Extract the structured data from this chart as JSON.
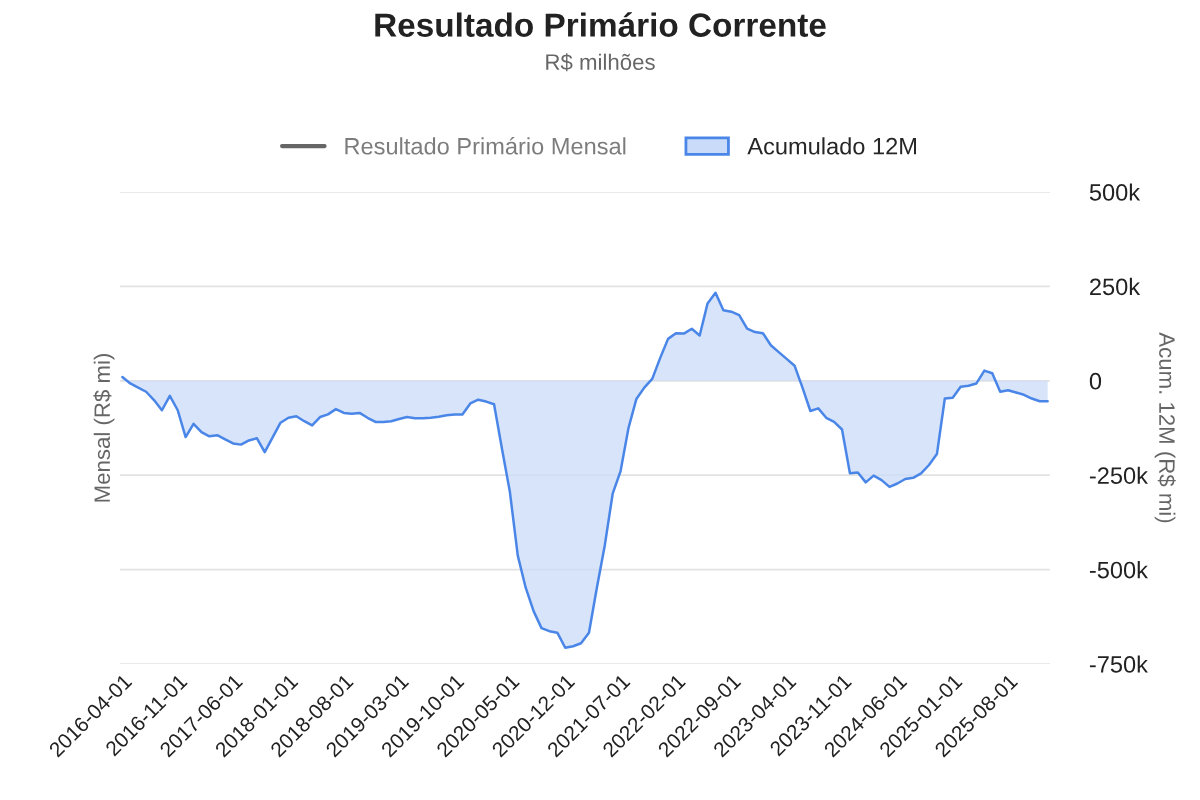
{
  "chart_data": {
    "type": "area",
    "title": "Resultado Primário Corrente",
    "subtitle": "R$ milhões",
    "ylabel": "Mensal (R$ mi)",
    "y2label": "Acum. 12M (R$ mi)",
    "categories": [
      "2016-04-01",
      null,
      null,
      null,
      null,
      null,
      null,
      "2016-11-01",
      null,
      null,
      null,
      null,
      null,
      null,
      "2017-06-01",
      null,
      null,
      null,
      null,
      null,
      null,
      "2018-01-01",
      null,
      null,
      null,
      null,
      null,
      null,
      "2018-08-01",
      null,
      null,
      null,
      null,
      null,
      null,
      "2019-03-01",
      null,
      null,
      null,
      null,
      null,
      null,
      "2019-10-01",
      null,
      null,
      null,
      null,
      null,
      null,
      "2020-05-01",
      null,
      null,
      null,
      null,
      null,
      null,
      "2020-12-01",
      null,
      null,
      null,
      null,
      null,
      null,
      "2021-07-01",
      null,
      null,
      null,
      null,
      null,
      null,
      "2022-02-01",
      null,
      null,
      null,
      null,
      null,
      null,
      "2022-09-01",
      null,
      null,
      null,
      null,
      null,
      null,
      "2023-04-01",
      null,
      null,
      null,
      null,
      null,
      null,
      "2023-11-01",
      null,
      null,
      null,
      null,
      null,
      null,
      "2024-06-01",
      null,
      null,
      null,
      null,
      null,
      null,
      "2025-01-01",
      null,
      null,
      null,
      null,
      null,
      null,
      "2025-08-01",
      null,
      null,
      null,
      null,
      null
    ],
    "series": [
      {
        "name": "Resultado Primário Mensal",
        "type": "line",
        "color": "#666666",
        "values": [
          null,
          null,
          null,
          null,
          null,
          null,
          null,
          null,
          null,
          null,
          null,
          null,
          null,
          null,
          null,
          null,
          null,
          null,
          null,
          null,
          null,
          null,
          null,
          null,
          null,
          null,
          null,
          null,
          null,
          null,
          null,
          null,
          null,
          null,
          null,
          null,
          null,
          null,
          null,
          null,
          null,
          null,
          null,
          null,
          null,
          null,
          null,
          null,
          null,
          null,
          null,
          null,
          null,
          null,
          null,
          null,
          null,
          null,
          null,
          null,
          null,
          null,
          null,
          null,
          null,
          null,
          null,
          null,
          null,
          null,
          null,
          null,
          null,
          null,
          null,
          null,
          null,
          null,
          null,
          null,
          null,
          null,
          null,
          null,
          null,
          null,
          null,
          null,
          null,
          null,
          null,
          null,
          null,
          null,
          null,
          null,
          null,
          null,
          null,
          null,
          null,
          null,
          null,
          null,
          null,
          null,
          null,
          null,
          null,
          null,
          null,
          null,
          null,
          null,
          null,
          null,
          null,
          null
        ]
      },
      {
        "name": "Acumulado 12M",
        "axis": "y2",
        "color": "#4a86e8",
        "values": [
          10000,
          -7000,
          -18000,
          -29000,
          -51000,
          -78000,
          -40000,
          -78000,
          -149000,
          -114000,
          -136000,
          -147000,
          -144000,
          -155000,
          -166000,
          -169000,
          -158000,
          -152000,
          -189000,
          -150000,
          -111000,
          -98000,
          -94000,
          -107000,
          -118000,
          -96000,
          -89000,
          -75000,
          -85000,
          -87000,
          -85000,
          -98000,
          -109000,
          -109000,
          -107000,
          -101000,
          -96000,
          -99000,
          -99000,
          -98000,
          -95000,
          -91000,
          -89000,
          -89000,
          -60000,
          -50000,
          -55000,
          -62000,
          -180000,
          -294000,
          -463000,
          -548000,
          -610000,
          -655000,
          -663000,
          -667000,
          -707000,
          -703000,
          -695000,
          -667000,
          -548000,
          -436000,
          -299000,
          -239000,
          -125000,
          -48000,
          -18000,
          5000,
          60000,
          111000,
          126000,
          125000,
          138000,
          120000,
          205000,
          233000,
          187000,
          183000,
          174000,
          138000,
          129000,
          126000,
          94000,
          76000,
          58000,
          40000,
          -18000,
          -80000,
          -73000,
          -98000,
          -109000,
          -129000,
          -245000,
          -243000,
          -269000,
          -251000,
          -263000,
          -281000,
          -272000,
          -260000,
          -257000,
          -245000,
          -223000,
          -194000,
          -47000,
          -45000,
          -16000,
          -13000,
          -7000,
          27000,
          20000,
          -29000,
          -25000,
          -31000,
          -37000,
          -47000,
          -54000,
          -54000
        ]
      }
    ],
    "y2lim": [
      -750000,
      500000
    ],
    "y2ticks": [
      {
        "value": -750000,
        "label": "-750k"
      },
      {
        "value": -500000,
        "label": "-500k"
      },
      {
        "value": -250000,
        "label": "-250k"
      },
      {
        "value": 0,
        "label": "0"
      },
      {
        "value": 250000,
        "label": "250k"
      },
      {
        "value": 500000,
        "label": "500k"
      }
    ],
    "grid": "y",
    "legend": "top"
  }
}
